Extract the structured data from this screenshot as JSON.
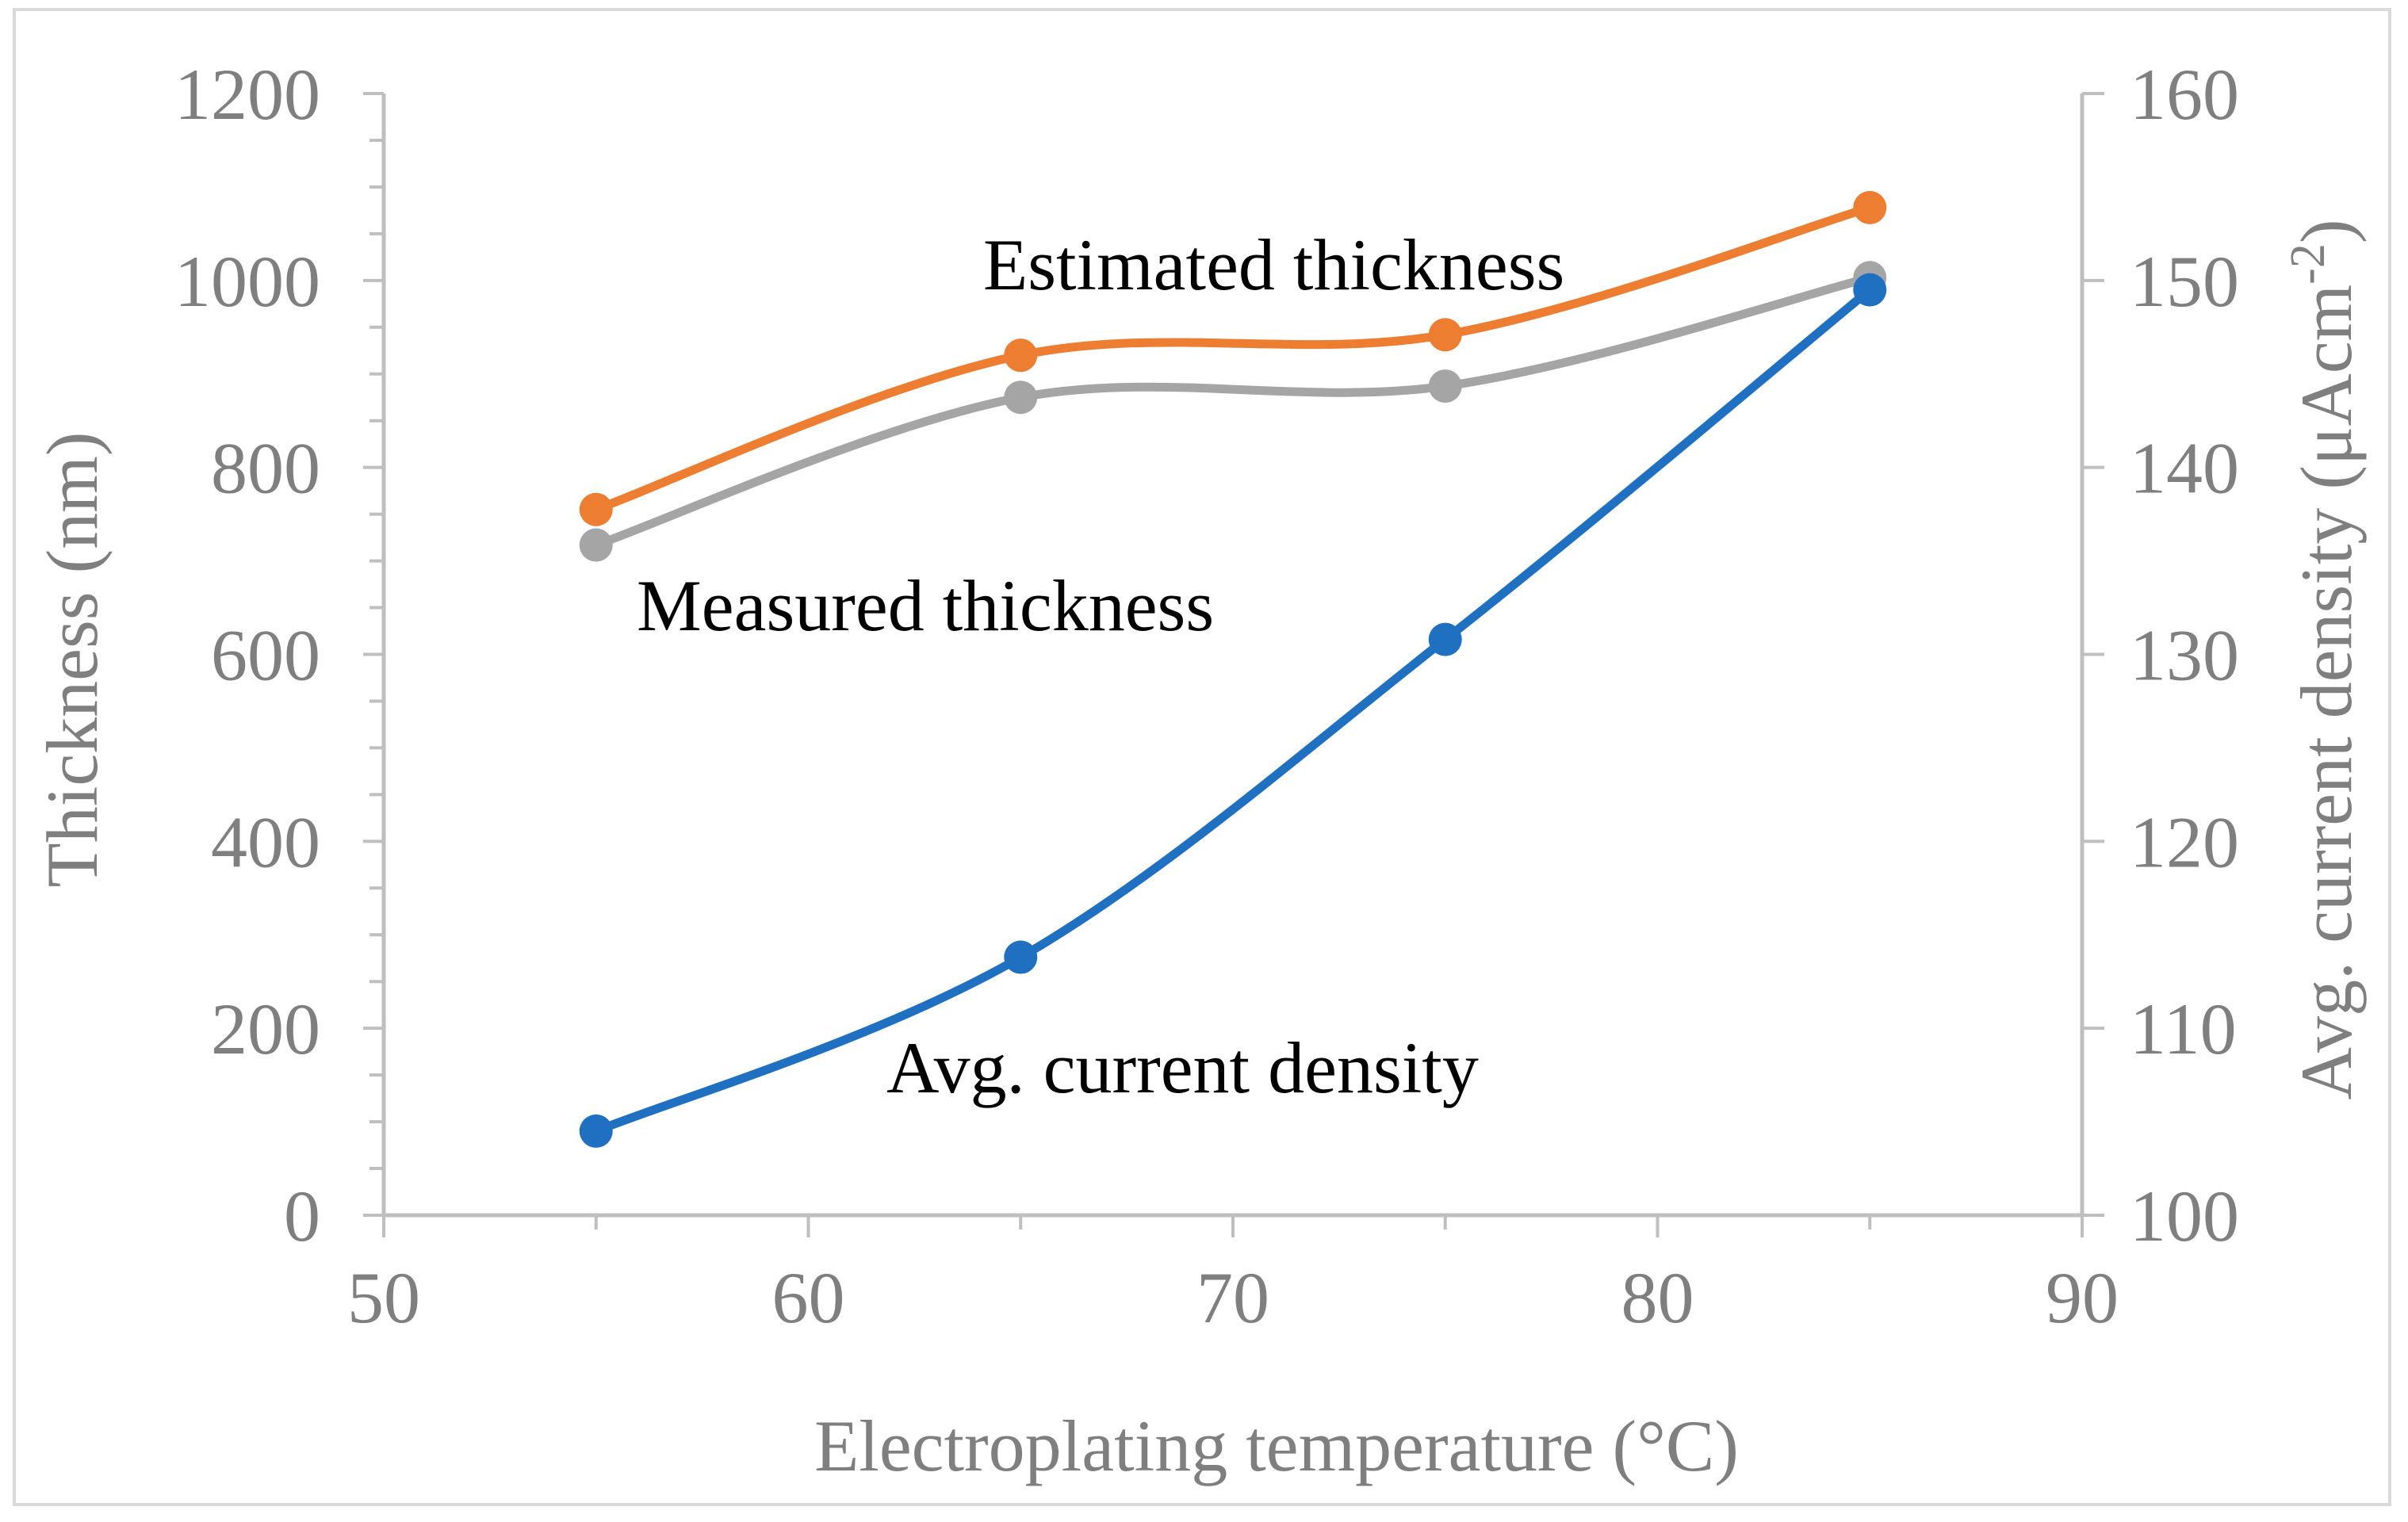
{
  "chart_data": {
    "type": "line",
    "title": "",
    "xlabel": "Electroplating temperature (°C)",
    "ylabel": "Thickness (nm)",
    "y2label_prefix": "Avg. current density (μAcm",
    "y2label_sup": "-2",
    "y2label_suffix": ")",
    "xlim": [
      50,
      90
    ],
    "ylim": [
      0,
      1200
    ],
    "y2lim": [
      100,
      160
    ],
    "x_ticks": [
      50,
      60,
      70,
      80,
      90
    ],
    "y_ticks": [
      0,
      200,
      400,
      600,
      800,
      1000,
      1200
    ],
    "y2_ticks": [
      100,
      110,
      120,
      130,
      140,
      150,
      160
    ],
    "x": [
      55,
      65,
      75,
      85
    ],
    "series": [
      {
        "name": "Estimated thickness",
        "axis": "left",
        "color": "#ED7D31",
        "values": [
          755,
          920,
          942,
          1078
        ]
      },
      {
        "name": "Measured thickness",
        "axis": "left",
        "color": "#A5A5A5",
        "values": [
          717,
          875,
          887,
          1003
        ]
      },
      {
        "name": "Avg. current density",
        "axis": "right",
        "color": "#1F70C1",
        "values": [
          104.5,
          113.8,
          130.8,
          149.5
        ]
      }
    ],
    "axis_color": "#bfbfbf",
    "tick_color": "#7f7f7f"
  }
}
